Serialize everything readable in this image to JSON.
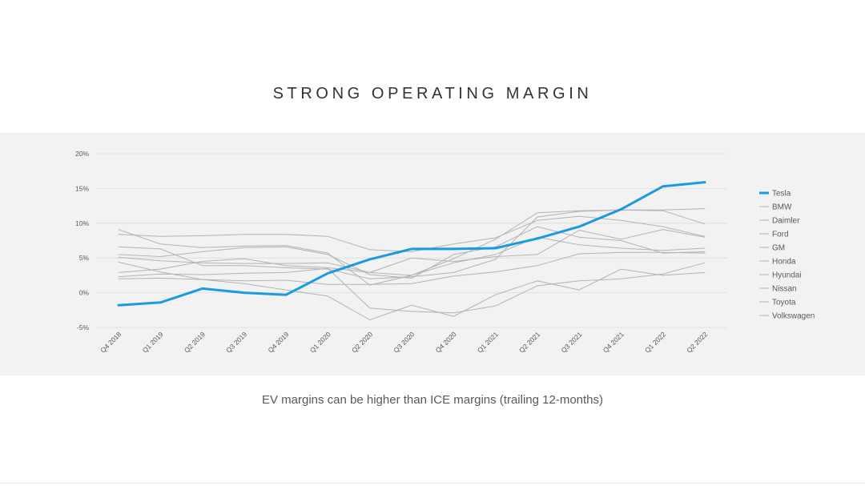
{
  "slide": {
    "title": "STRONG OPERATING MARGIN",
    "caption": "EV margins can be higher than ICE margins (trailing 12-months)"
  },
  "colors": {
    "highlight": "#1a9ae0",
    "others": "#b3b3b3",
    "grid": "#dcdcdc",
    "panel": "#f2f2f2"
  },
  "chart_data": {
    "type": "line",
    "title": "",
    "xlabel": "",
    "ylabel": "",
    "ylim": [
      -5,
      20
    ],
    "yticks": [
      -5,
      0,
      5,
      10,
      15,
      20
    ],
    "ytick_labels": [
      "-5%",
      "0%",
      "5%",
      "10%",
      "15%",
      "20%"
    ],
    "grid": true,
    "legend_position": "right",
    "x": [
      "Q4 2018",
      "Q1 2019",
      "Q2 2019",
      "Q3 2019",
      "Q4 2019",
      "Q1 2020",
      "Q2 2020",
      "Q3 2020",
      "Q4 2020",
      "Q1 2021",
      "Q2 2021",
      "Q3 2021",
      "Q4 2021",
      "Q1 2022",
      "Q2 2022"
    ],
    "series": [
      {
        "name": "Tesla",
        "highlight": true,
        "values": [
          -1.8,
          -1.4,
          0.6,
          0.0,
          -0.3,
          2.8,
          4.8,
          6.3,
          6.3,
          6.4,
          7.8,
          9.5,
          12.0,
          15.3,
          15.9
        ]
      },
      {
        "name": "BMW",
        "values": [
          9.1,
          7.0,
          6.5,
          6.7,
          6.8,
          5.7,
          1.1,
          2.5,
          4.9,
          7.7,
          11.5,
          11.8,
          11.9,
          11.9,
          12.1
        ]
      },
      {
        "name": "Daimler",
        "values": [
          8.4,
          8.1,
          8.2,
          8.4,
          8.4,
          8.1,
          6.2,
          5.9,
          7.0,
          7.9,
          10.4,
          11.0,
          10.4,
          9.5,
          8.1
        ]
      },
      {
        "name": "Ford",
        "values": [
          2.3,
          2.7,
          2.6,
          2.8,
          2.9,
          3.5,
          -2.2,
          -2.7,
          -2.9,
          -1.9,
          1.0,
          1.7,
          2.0,
          2.7,
          4.3
        ]
      },
      {
        "name": "GM",
        "values": [
          5.5,
          5.2,
          5.9,
          6.5,
          6.6,
          5.5,
          2.6,
          2.1,
          5.5,
          6.6,
          9.5,
          8.0,
          7.5,
          5.7,
          5.9
        ]
      },
      {
        "name": "Honda",
        "values": [
          5.1,
          4.6,
          4.3,
          4.2,
          4.2,
          4.3,
          2.9,
          2.5,
          4.3,
          5.5,
          8.0,
          6.9,
          6.4,
          6.1,
          6.4
        ]
      },
      {
        "name": "Hyundai",
        "values": [
          2.0,
          2.1,
          1.9,
          1.7,
          1.8,
          1.2,
          1.2,
          1.3,
          2.4,
          3.0,
          3.9,
          5.6,
          5.8,
          5.8,
          5.7
        ]
      },
      {
        "name": "Nissan",
        "values": [
          4.4,
          3.0,
          1.9,
          1.3,
          0.4,
          -0.5,
          -3.9,
          -1.8,
          -3.4,
          -0.3,
          1.7,
          0.4,
          3.4,
          2.5,
          2.9
        ]
      },
      {
        "name": "Toyota",
        "values": [
          6.6,
          6.3,
          3.9,
          3.9,
          3.6,
          3.4,
          2.0,
          2.3,
          2.9,
          4.8,
          10.9,
          11.7,
          11.9,
          11.8,
          9.9
        ]
      },
      {
        "name": "Volkswagen",
        "values": [
          2.9,
          3.4,
          4.5,
          4.9,
          3.9,
          3.6,
          2.9,
          5.0,
          4.5,
          5.2,
          5.5,
          9.0,
          7.7,
          9.1,
          8.0
        ]
      }
    ]
  }
}
